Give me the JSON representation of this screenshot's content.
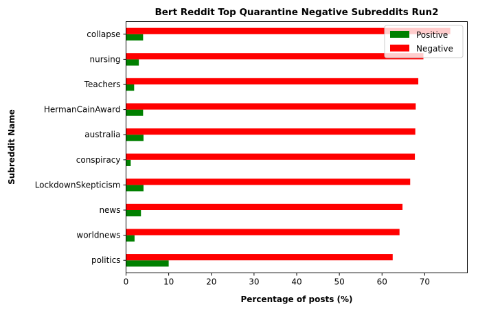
{
  "chart_data": {
    "type": "bar",
    "orientation": "horizontal",
    "title": "Bert Reddit Top Quarantine Negative Subreddits Run2",
    "xlabel": "Percentage of posts (%)",
    "ylabel": "Subreddit Name",
    "xlim": [
      0,
      80
    ],
    "xticks": [
      0,
      10,
      20,
      30,
      40,
      50,
      60,
      70
    ],
    "grid": false,
    "legend_position": "top-right",
    "categories": [
      "collapse",
      "nursing",
      "Teachers",
      "HermanCainAward",
      "australia",
      "conspiracy",
      "LockdownSkepticism",
      "news",
      "worldnews",
      "politics"
    ],
    "series": [
      {
        "name": "Positive",
        "color": "#008000",
        "values": [
          4.0,
          3.0,
          1.9,
          4.0,
          4.1,
          1.1,
          4.1,
          3.5,
          2.0,
          10.0
        ]
      },
      {
        "name": "Negative",
        "color": "#ff0000",
        "values": [
          76.0,
          69.7,
          68.5,
          67.9,
          67.8,
          67.7,
          66.6,
          64.8,
          64.1,
          62.5
        ]
      }
    ]
  }
}
